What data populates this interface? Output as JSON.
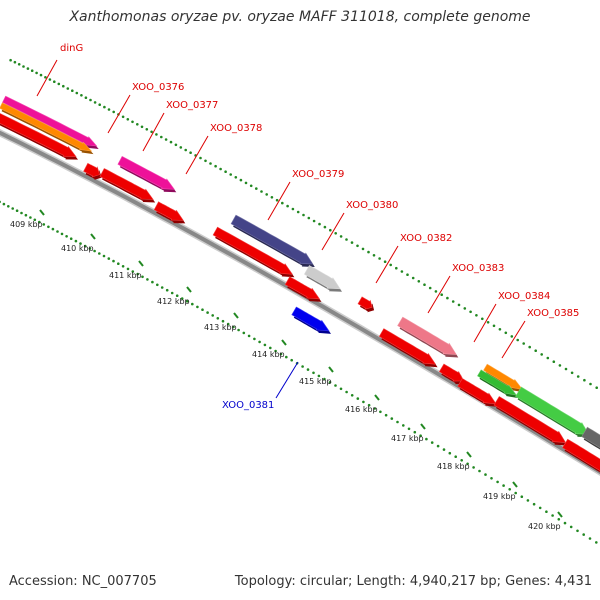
{
  "title": "Xanthomonas oryzae pv. oryzae MAFF 311018, complete genome",
  "footer": {
    "accession": "Accession: NC_007705",
    "summary": "Topology: circular; Length: 4,940,217 bp; Genes: 4,431"
  },
  "colors": {
    "forward_label": "#dd0000",
    "reverse_label": "#0000cc",
    "backbone": "#888888",
    "ticks": "#228822"
  },
  "scale_ticks": [
    {
      "label": "409 kbp"
    },
    {
      "label": "410 kbp"
    },
    {
      "label": "411 kbp"
    },
    {
      "label": "412 kbp"
    },
    {
      "label": "413 kbp"
    },
    {
      "label": "414 kbp"
    },
    {
      "label": "415 kbp"
    },
    {
      "label": "416 kbp"
    },
    {
      "label": "417 kbp"
    },
    {
      "label": "418 kbp"
    },
    {
      "label": "419 kbp"
    },
    {
      "label": "420 kbp"
    }
  ],
  "gene_labels": [
    {
      "name": "dinG",
      "strand": "forward"
    },
    {
      "name": "XOO_0376",
      "strand": "forward"
    },
    {
      "name": "XOO_0377",
      "strand": "forward"
    },
    {
      "name": "XOO_0378",
      "strand": "forward"
    },
    {
      "name": "XOO_0379",
      "strand": "forward"
    },
    {
      "name": "XOO_0380",
      "strand": "forward"
    },
    {
      "name": "XOO_0382",
      "strand": "forward"
    },
    {
      "name": "XOO_0383",
      "strand": "forward"
    },
    {
      "name": "XOO_0384",
      "strand": "forward"
    },
    {
      "name": "XOO_0385",
      "strand": "forward"
    },
    {
      "name": "XOO_0381",
      "strand": "reverse"
    }
  ]
}
